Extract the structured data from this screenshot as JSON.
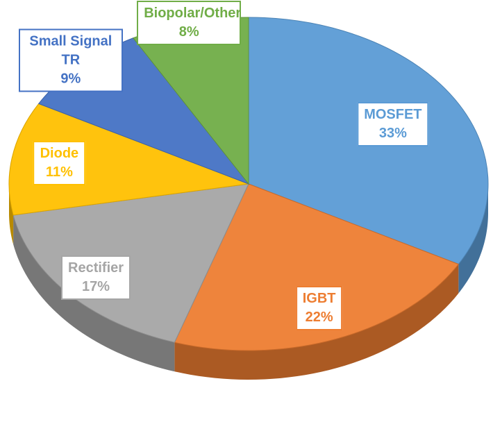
{
  "chart_data": {
    "type": "pie",
    "categories": [
      "MOSFET",
      "IGBT",
      "Rectifier",
      "Diode",
      "Small Signal TR",
      "Biopolar/Other"
    ],
    "values": [
      33,
      22,
      17,
      11,
      9,
      8
    ],
    "value_labels": [
      "33%",
      "22%",
      "17%",
      "11%",
      "9%",
      "8%"
    ],
    "colors": [
      "#5b9bd5",
      "#ed7d31",
      "#a5a5a5",
      "#ffc000",
      "#4472c4",
      "#70ad47"
    ]
  }
}
